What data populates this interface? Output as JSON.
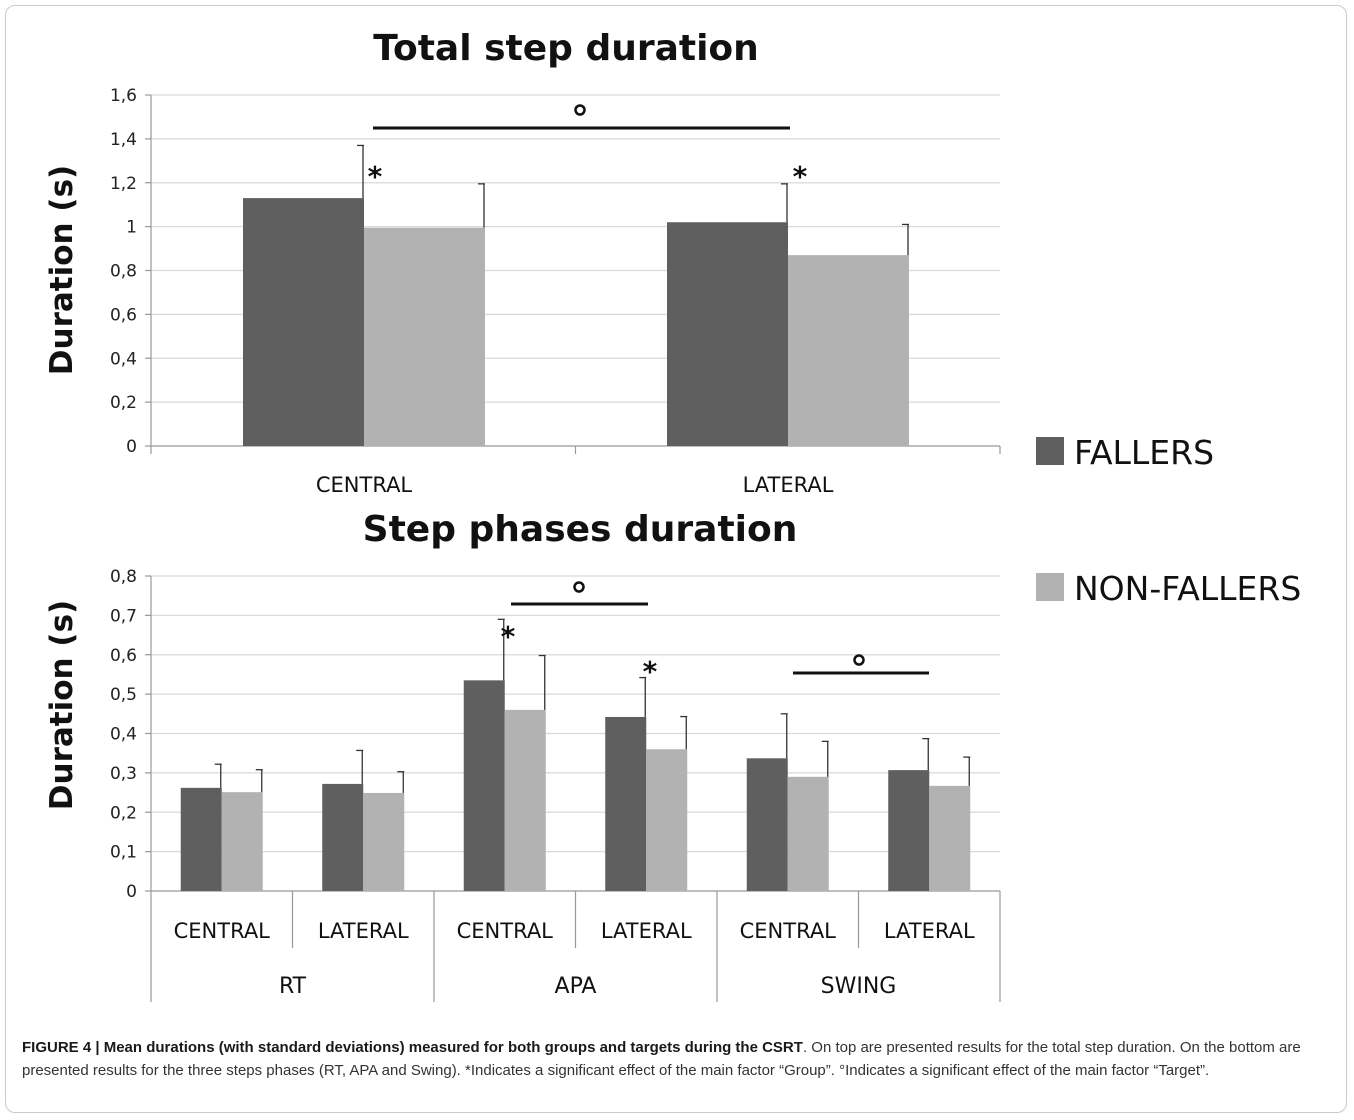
{
  "colors": {
    "fallers": "#5f5f5f",
    "non_fallers": "#b2b2b2",
    "grid": "#d9d9d9",
    "axis": "#999999"
  },
  "legend": {
    "fallers": "FALLERS",
    "non_fallers": "NON-FALLERS"
  },
  "chart_data": [
    {
      "type": "bar",
      "title": "Total step duration",
      "ylabel": "Duration (s)",
      "ylim": [
        0,
        1.6
      ],
      "ytick_labels": [
        "0",
        "0,2",
        "0,4",
        "0,6",
        "0,8",
        "1",
        "1,2",
        "1,4",
        "1,6"
      ],
      "categories": [
        "CENTRAL",
        "LATERAL"
      ],
      "series": [
        {
          "name": "FALLERS",
          "values": [
            1.13,
            1.02
          ],
          "sd": [
            0.24,
            0.175
          ]
        },
        {
          "name": "NON-FALLERS",
          "values": [
            0.995,
            0.87
          ],
          "sd": [
            0.2,
            0.14
          ]
        }
      ],
      "annotations": [
        {
          "symbol": "*",
          "category": "CENTRAL"
        },
        {
          "symbol": "*",
          "category": "LATERAL"
        },
        {
          "symbol": "°",
          "span": [
            "CENTRAL",
            "LATERAL"
          ]
        }
      ],
      "grid": true,
      "legend_position": "right"
    },
    {
      "type": "bar",
      "title": "Step phases duration",
      "ylabel": "Duration (s)",
      "ylim": [
        0,
        0.8
      ],
      "ytick_labels": [
        "0",
        "0,1",
        "0,2",
        "0,3",
        "0,4",
        "0,5",
        "0,6",
        "0,7",
        "0,8"
      ],
      "groups": [
        "RT",
        "APA",
        "SWING"
      ],
      "categories": [
        "CENTRAL",
        "LATERAL",
        "CENTRAL",
        "LATERAL",
        "CENTRAL",
        "LATERAL"
      ],
      "series": [
        {
          "name": "FALLERS",
          "values": [
            0.262,
            0.272,
            0.535,
            0.442,
            0.337,
            0.307
          ],
          "sd": [
            0.06,
            0.085,
            0.155,
            0.1,
            0.113,
            0.08
          ]
        },
        {
          "name": "NON-FALLERS",
          "values": [
            0.251,
            0.249,
            0.46,
            0.36,
            0.29,
            0.267
          ],
          "sd": [
            0.057,
            0.054,
            0.138,
            0.083,
            0.09,
            0.073
          ]
        }
      ],
      "annotations": [
        {
          "symbol": "*",
          "group": "APA",
          "category": "CENTRAL"
        },
        {
          "symbol": "*",
          "group": "APA",
          "category": "LATERAL"
        },
        {
          "symbol": "°",
          "group": "APA"
        },
        {
          "symbol": "°",
          "group": "SWING"
        }
      ],
      "grid": true
    }
  ],
  "caption": {
    "bold": "FIGURE 4 | Mean durations (with standard deviations) measured for both groups and targets during the CSRT",
    "rest": ". On top are presented results for the total step duration. On the bottom are presented results for the three steps phases (RT, APA and Swing). *Indicates a significant effect of the main factor “Group”. °Indicates a significant effect of the main factor “Target”."
  }
}
